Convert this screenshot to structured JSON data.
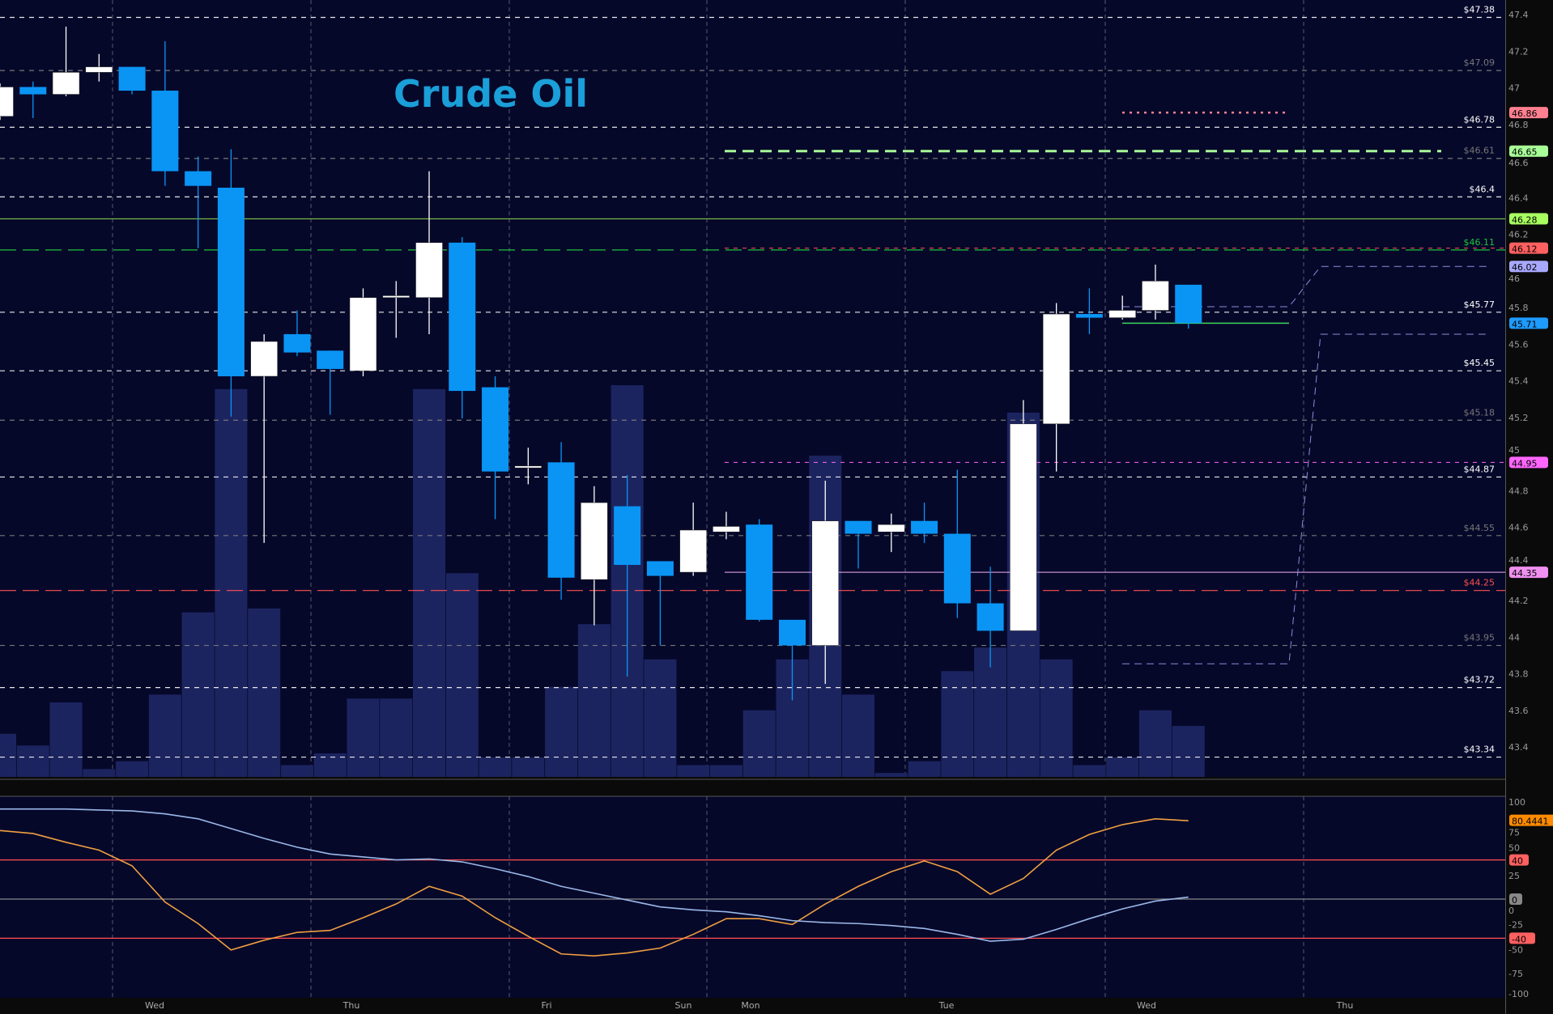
{
  "chart_data": [
    {
      "type": "candlestick",
      "title": "Crude Oil",
      "ylim": [
        43.2,
        47.45
      ],
      "x_tick_labels": [
        "Wed",
        "Thu",
        "Fri",
        "Sun",
        "Mon",
        "Tue",
        "Wed",
        "Thu"
      ],
      "y_ticks": [
        47.4,
        47.2,
        47.0,
        46.8,
        46.6,
        46.4,
        46.2,
        46.0,
        45.8,
        45.6,
        45.4,
        45.2,
        45.0,
        44.8,
        44.6,
        44.4,
        44.2,
        44.0,
        43.8,
        43.6,
        43.4
      ],
      "grid": true,
      "up_color": "#ffffff",
      "down_color": "#0a95f5",
      "candles": [
        {
          "o": 46.84,
          "h": 47.02,
          "l": 46.82,
          "c": 47.0
        },
        {
          "o": 47.0,
          "h": 47.03,
          "l": 46.83,
          "c": 46.96
        },
        {
          "o": 46.96,
          "h": 47.33,
          "l": 46.95,
          "c": 47.08
        },
        {
          "o": 47.08,
          "h": 47.18,
          "l": 47.03,
          "c": 47.11
        },
        {
          "o": 47.11,
          "h": 47.11,
          "l": 46.96,
          "c": 46.98
        },
        {
          "o": 46.98,
          "h": 47.25,
          "l": 46.46,
          "c": 46.54
        },
        {
          "o": 46.54,
          "h": 46.62,
          "l": 46.12,
          "c": 46.46
        },
        {
          "o": 46.45,
          "h": 46.66,
          "l": 45.2,
          "c": 45.42
        },
        {
          "o": 45.42,
          "h": 45.65,
          "l": 44.51,
          "c": 45.61
        },
        {
          "o": 45.65,
          "h": 45.78,
          "l": 45.53,
          "c": 45.55
        },
        {
          "o": 45.56,
          "h": 45.56,
          "l": 45.21,
          "c": 45.46
        },
        {
          "o": 45.45,
          "h": 45.9,
          "l": 45.42,
          "c": 45.85
        },
        {
          "o": 45.85,
          "h": 45.94,
          "l": 45.63,
          "c": 45.86
        },
        {
          "o": 45.85,
          "h": 46.54,
          "l": 45.65,
          "c": 46.15
        },
        {
          "o": 46.15,
          "h": 46.18,
          "l": 45.19,
          "c": 45.34
        },
        {
          "o": 45.36,
          "h": 45.42,
          "l": 44.64,
          "c": 44.9
        },
        {
          "o": 44.92,
          "h": 45.03,
          "l": 44.83,
          "c": 44.93
        },
        {
          "o": 44.95,
          "h": 45.06,
          "l": 44.2,
          "c": 44.32
        },
        {
          "o": 44.31,
          "h": 44.82,
          "l": 44.06,
          "c": 44.73
        },
        {
          "o": 44.71,
          "h": 44.88,
          "l": 43.78,
          "c": 44.39
        },
        {
          "o": 44.41,
          "h": 44.41,
          "l": 43.95,
          "c": 44.33
        },
        {
          "o": 44.35,
          "h": 44.73,
          "l": 44.33,
          "c": 44.58
        },
        {
          "o": 44.57,
          "h": 44.68,
          "l": 44.53,
          "c": 44.6
        },
        {
          "o": 44.61,
          "h": 44.64,
          "l": 44.08,
          "c": 44.09
        },
        {
          "o": 44.09,
          "h": 44.09,
          "l": 43.65,
          "c": 43.95
        },
        {
          "o": 43.95,
          "h": 44.85,
          "l": 43.74,
          "c": 44.63
        },
        {
          "o": 44.63,
          "h": 44.63,
          "l": 44.37,
          "c": 44.56
        },
        {
          "o": 44.57,
          "h": 44.67,
          "l": 44.46,
          "c": 44.61
        },
        {
          "o": 44.63,
          "h": 44.73,
          "l": 44.51,
          "c": 44.56
        },
        {
          "o": 44.56,
          "h": 44.91,
          "l": 44.1,
          "c": 44.18
        },
        {
          "o": 44.18,
          "h": 44.38,
          "l": 43.83,
          "c": 44.03
        },
        {
          "o": 44.03,
          "h": 45.29,
          "l": 44.03,
          "c": 45.16
        },
        {
          "o": 45.16,
          "h": 45.82,
          "l": 44.9,
          "c": 45.76
        },
        {
          "o": 45.76,
          "h": 45.9,
          "l": 45.65,
          "c": 45.74
        },
        {
          "o": 45.74,
          "h": 45.86,
          "l": 45.73,
          "c": 45.78
        },
        {
          "o": 45.78,
          "h": 46.03,
          "l": 45.73,
          "c": 45.94
        },
        {
          "o": 45.92,
          "h": 45.92,
          "l": 45.68,
          "c": 45.71
        }
      ],
      "volume_relative_pct": [
        11,
        8,
        19,
        2,
        4,
        21,
        42,
        99,
        43,
        3,
        6,
        20,
        20,
        99,
        52,
        5,
        5,
        23,
        39,
        100,
        30,
        3,
        3,
        17,
        30,
        82,
        21,
        1,
        4,
        27,
        33,
        93,
        30,
        3,
        5,
        17,
        13
      ],
      "price_levels": [
        {
          "label": "$47.38",
          "value": 47.38,
          "color": "#ffffff"
        },
        {
          "label": "$47.09",
          "value": 47.09,
          "color": "#777777"
        },
        {
          "label": "$46.78",
          "value": 46.78,
          "color": "#ffffff"
        },
        {
          "label": "$46.61",
          "value": 46.61,
          "color": "#777777"
        },
        {
          "label": "$46.4",
          "value": 46.4,
          "color": "#ffffff"
        },
        {
          "label": "$46.11",
          "value": 46.11,
          "color": "#1fc23a"
        },
        {
          "label": "$45.77",
          "value": 45.77,
          "color": "#ffffff"
        },
        {
          "label": "$45.45",
          "value": 45.45,
          "color": "#ffffff"
        },
        {
          "label": "$45.18",
          "value": 45.18,
          "color": "#777777"
        },
        {
          "label": "$44.87",
          "value": 44.87,
          "color": "#ffffff"
        },
        {
          "label": "$44.55",
          "value": 44.55,
          "color": "#777777"
        },
        {
          "label": "$44.25",
          "value": 44.25,
          "color": "#ff5050"
        },
        {
          "label": "$43.95",
          "value": 43.95,
          "color": "#777777"
        },
        {
          "label": "$43.72",
          "value": 43.72,
          "color": "#ffffff"
        },
        {
          "label": "$43.34",
          "value": 43.34,
          "color": "#ffffff"
        }
      ],
      "axis_tags": [
        {
          "label": "46.86",
          "value": 46.86,
          "color": "#ff8090"
        },
        {
          "label": "46.65",
          "value": 46.65,
          "color": "#a8ff98"
        },
        {
          "label": "46.28",
          "value": 46.28,
          "color": "#a8ff60"
        },
        {
          "label": "46.12",
          "value": 46.12,
          "color": "#ff6060"
        },
        {
          "label": "46.02",
          "value": 46.02,
          "color": "#a8a8ff"
        },
        {
          "label": "45.71",
          "value": 45.71,
          "color": "#1e9bff"
        },
        {
          "label": "44.95",
          "value": 44.95,
          "color": "#ff66ff"
        },
        {
          "label": "44.35",
          "value": 44.35,
          "color": "#f090f0"
        }
      ]
    },
    {
      "type": "line",
      "ylim": [
        -100,
        100
      ],
      "y_ticks": [
        100,
        75,
        50,
        25,
        0,
        -25,
        -50,
        -75,
        -100
      ],
      "levels": [
        40,
        0,
        -40
      ],
      "series": [
        {
          "color": "#f0a040",
          "values": [
            70,
            67,
            58,
            50,
            34,
            -3,
            -25,
            -52,
            -42,
            -34,
            -32,
            -19,
            -5,
            13,
            3,
            -19,
            -38,
            -56,
            -58,
            -55,
            -50,
            -36,
            -20,
            -20,
            -26,
            -5,
            13,
            28,
            39,
            28,
            5,
            21,
            50,
            66,
            76,
            82,
            80
          ]
        },
        {
          "color": "#9ab8e8",
          "values": [
            92,
            92,
            92,
            91,
            90,
            87,
            82,
            72,
            62,
            53,
            46,
            43,
            40,
            41,
            38,
            31,
            23,
            13,
            6,
            -1,
            -8,
            -11,
            -13,
            -17,
            -22,
            -24,
            -25,
            -27,
            -30,
            -36,
            -43,
            -41,
            -31,
            -20,
            -10,
            -2,
            2
          ]
        }
      ],
      "axis_tags": [
        {
          "label": "80.4441",
          "value": 80.4441,
          "color": "#ff8c00"
        },
        {
          "label": "40",
          "value": 40,
          "color": "#ff6060"
        },
        {
          "label": "0",
          "value": 0,
          "color": "#888888"
        },
        {
          "label": "-40",
          "value": -40,
          "color": "#ff6060"
        }
      ]
    }
  ]
}
